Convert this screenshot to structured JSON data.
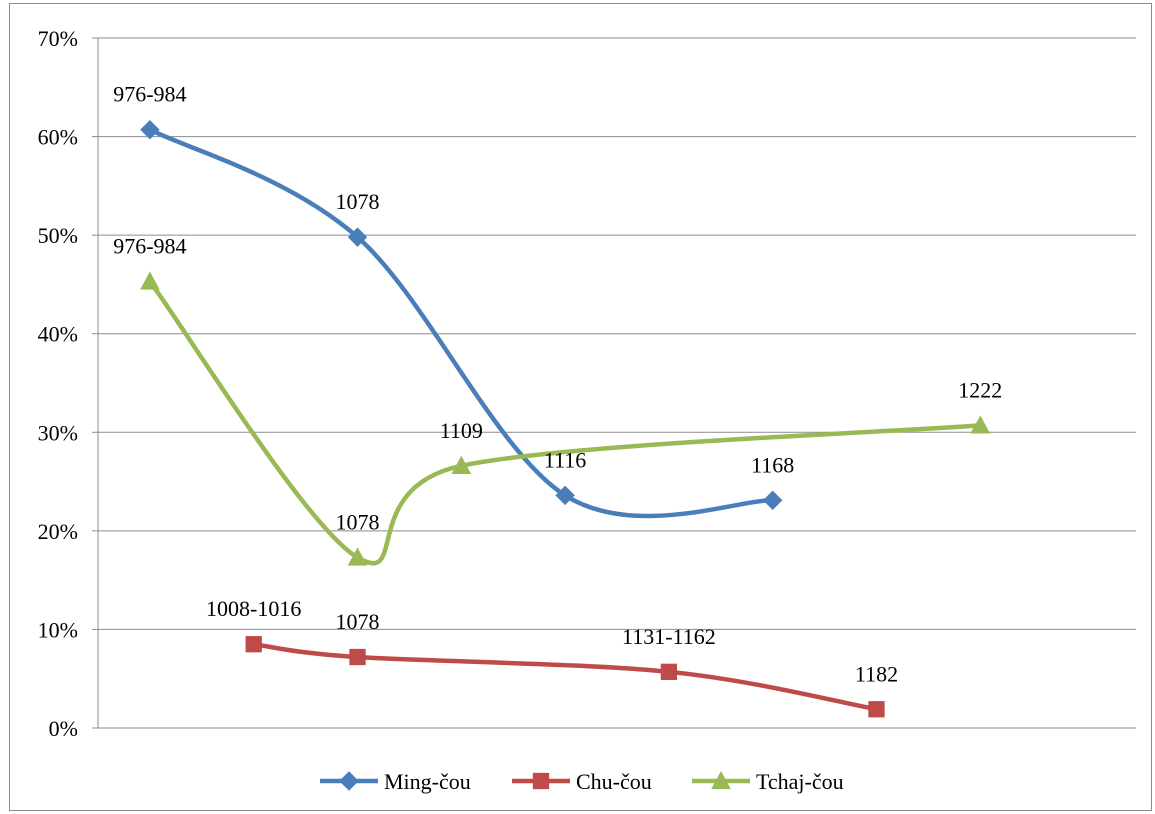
{
  "chart_data": {
    "type": "line",
    "title": "",
    "xlabel": "",
    "ylabel": "",
    "ylim": [
      0,
      0.7
    ],
    "y_ticks": [
      "0%",
      "10%",
      "20%",
      "30%",
      "40%",
      "50%",
      "60%",
      "70%"
    ],
    "grid": true,
    "smooth": true,
    "legend_position": "bottom",
    "series": [
      {
        "name": "Ming-čou",
        "color": "#4a7ebb",
        "marker": "diamond",
        "points": [
          {
            "x": 1,
            "y": 0.607,
            "label": "976-984"
          },
          {
            "x": 3,
            "y": 0.498,
            "label": "1078"
          },
          {
            "x": 5,
            "y": 0.236,
            "label": "1116"
          },
          {
            "x": 7,
            "y": 0.231,
            "label": "1168"
          }
        ]
      },
      {
        "name": "Chu-čou",
        "color": "#be4b48",
        "marker": "square",
        "points": [
          {
            "x": 2,
            "y": 0.085,
            "label": "1008-1016"
          },
          {
            "x": 3,
            "y": 0.072,
            "label": "1078"
          },
          {
            "x": 6,
            "y": 0.057,
            "label": "1131-1162"
          },
          {
            "x": 8,
            "y": 0.019,
            "label": "1182"
          }
        ]
      },
      {
        "name": "Tchaj-čou",
        "color": "#98b954",
        "marker": "triangle",
        "points": [
          {
            "x": 1,
            "y": 0.453,
            "label": "976-984"
          },
          {
            "x": 3,
            "y": 0.173,
            "label": "1078"
          },
          {
            "x": 4,
            "y": 0.266,
            "label": "1109"
          },
          {
            "x": 9,
            "y": 0.307,
            "label": "1222"
          }
        ]
      }
    ]
  }
}
